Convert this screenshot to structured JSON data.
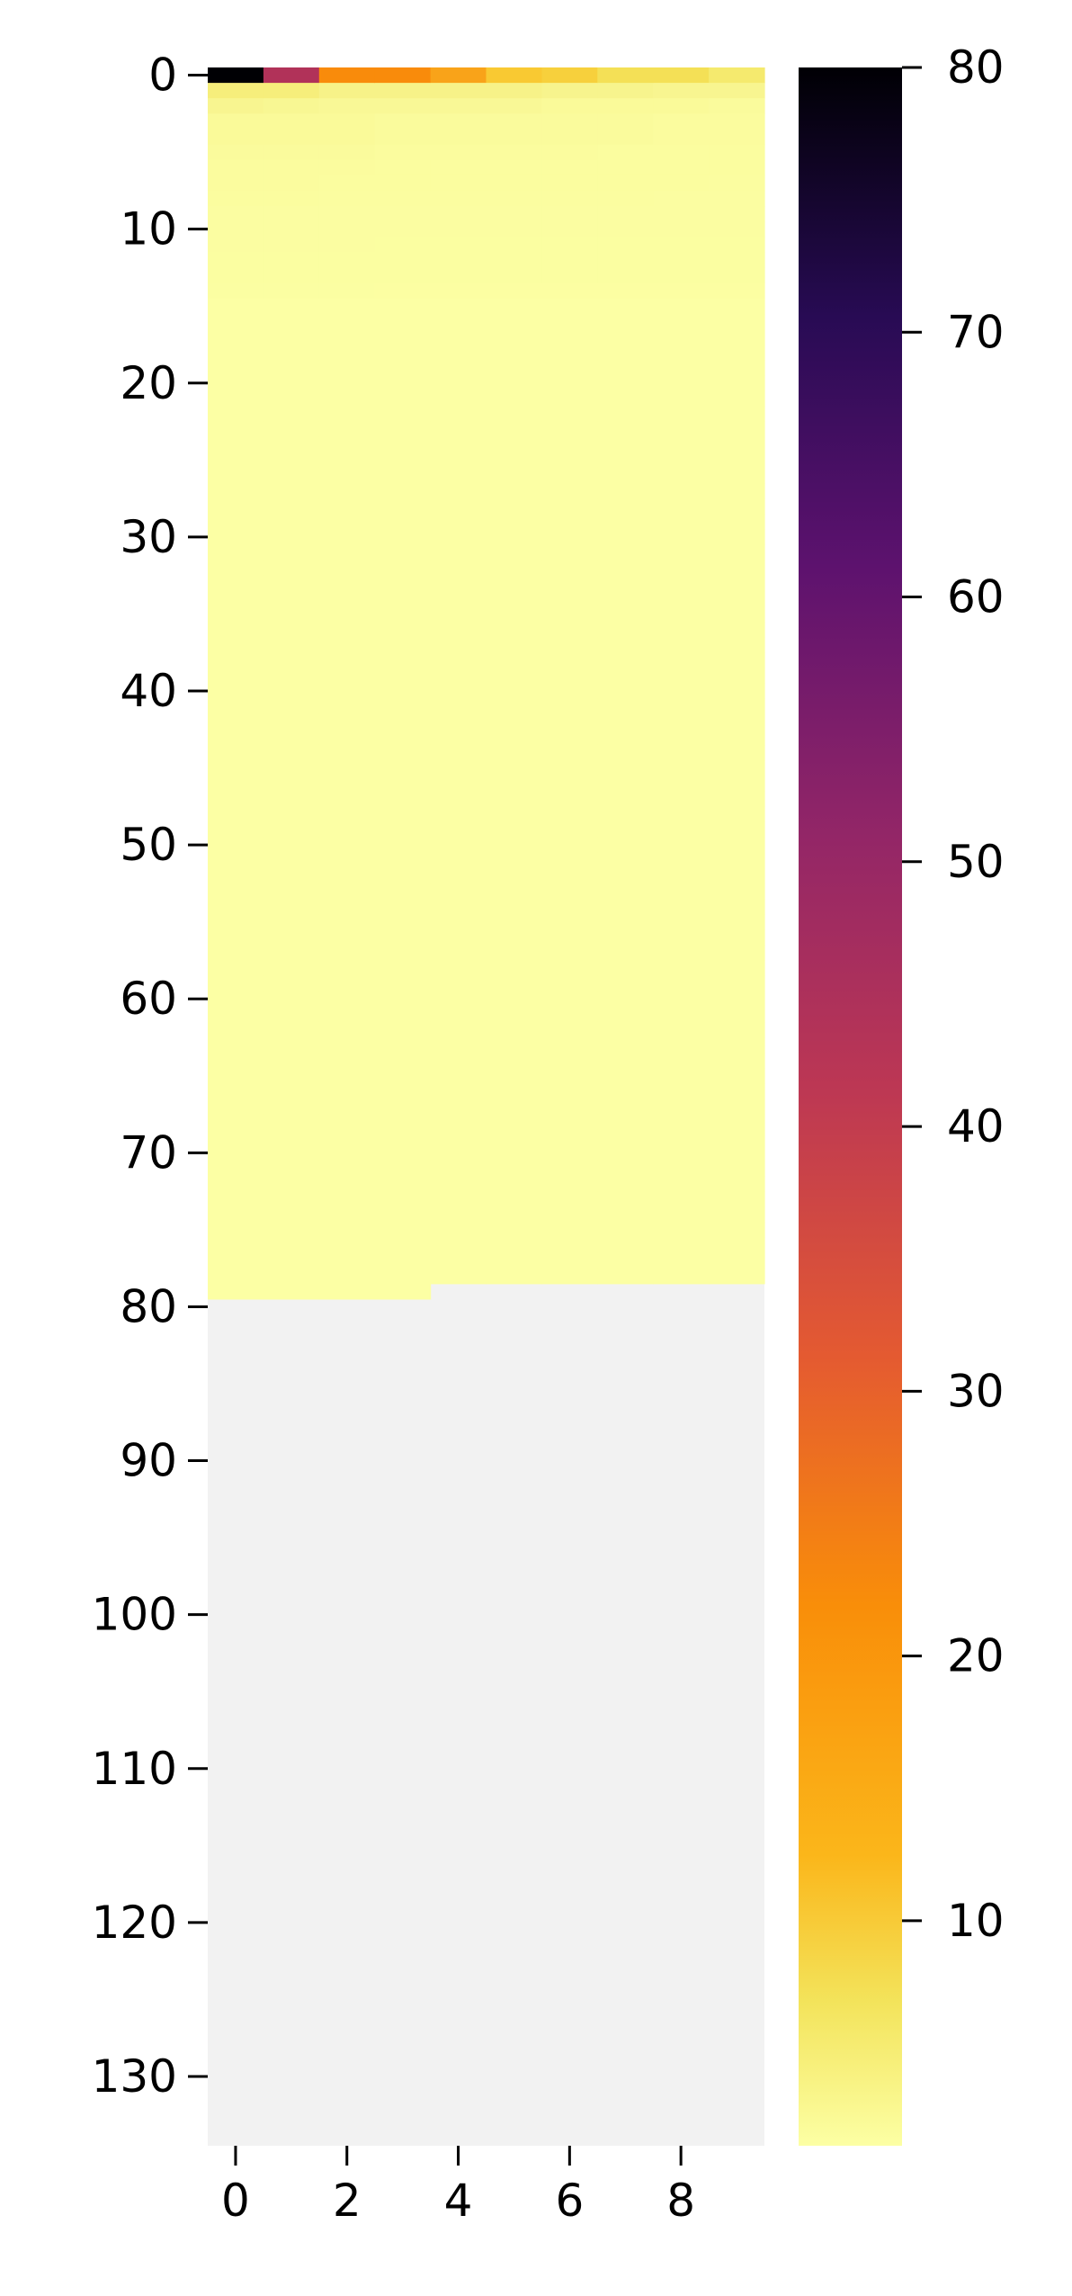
{
  "chart_data": {
    "type": "heatmap",
    "title": "",
    "xlabel": "",
    "ylabel": "",
    "n_cols": 10,
    "n_rows": 135,
    "x_ticks": [
      0,
      2,
      4,
      6,
      8
    ],
    "y_ticks": [
      0,
      10,
      20,
      30,
      40,
      50,
      60,
      70,
      80,
      90,
      100,
      110,
      120,
      130
    ],
    "colorbar": {
      "colormap": "inferno_r",
      "vmin": 1.5,
      "vmax": 80,
      "ticks": [
        10,
        20,
        30,
        40,
        50,
        60,
        70,
        80
      ]
    },
    "missing_color": "#f2f2f2",
    "last_valid_row_per_col": [
      79,
      79,
      79,
      79,
      78,
      78,
      78,
      78,
      78,
      78
    ],
    "top_rows": [
      [
        80,
        50,
        33,
        33,
        30,
        25,
        23,
        18,
        18,
        14
      ],
      [
        12,
        12,
        10,
        10,
        10,
        10,
        9,
        9,
        8,
        8
      ],
      [
        8,
        7,
        6,
        6,
        6,
        6,
        5,
        5,
        5,
        4
      ],
      [
        5,
        5,
        5,
        4,
        4,
        4,
        4,
        4,
        3.5,
        3.5
      ],
      [
        5,
        5,
        5,
        4,
        4,
        4,
        4,
        4,
        3.5,
        3.5
      ],
      [
        4,
        4,
        4,
        3.5,
        3.5,
        3.5,
        3.5,
        3,
        3,
        3
      ],
      [
        3.5,
        3.5,
        3.5,
        3,
        3,
        3,
        3,
        3,
        3,
        3
      ],
      [
        3.5,
        3.5,
        3,
        3,
        3,
        3,
        3,
        3,
        3,
        2.8
      ],
      [
        3,
        3,
        2.8,
        2.8,
        2.8,
        2.8,
        2.8,
        2.8,
        2.6,
        2.6
      ],
      [
        2.6,
        2.6,
        2.6,
        2.6,
        2.6,
        2.6,
        2.6,
        2.5,
        2.5,
        2.5
      ],
      [
        2.6,
        2.6,
        2.6,
        2.6,
        2.6,
        2.6,
        2.6,
        2.5,
        2.5,
        2.5
      ],
      [
        2.5,
        2.5,
        2.5,
        2.4,
        2.4,
        2.4,
        2.4,
        2.4,
        2.4,
        2.4
      ],
      [
        2.4,
        2.4,
        2.4,
        2.4,
        2.4,
        2.4,
        2.4,
        2.4,
        2.4,
        2.4
      ],
      [
        2.4,
        2.4,
        2.4,
        2.4,
        2.4,
        2.4,
        2.4,
        2.4,
        2.4,
        2.4
      ],
      [
        2.3,
        2.3,
        2.3,
        2,
        2,
        2,
        2,
        2,
        2,
        2
      ]
    ],
    "rest_value": 1.6
  }
}
